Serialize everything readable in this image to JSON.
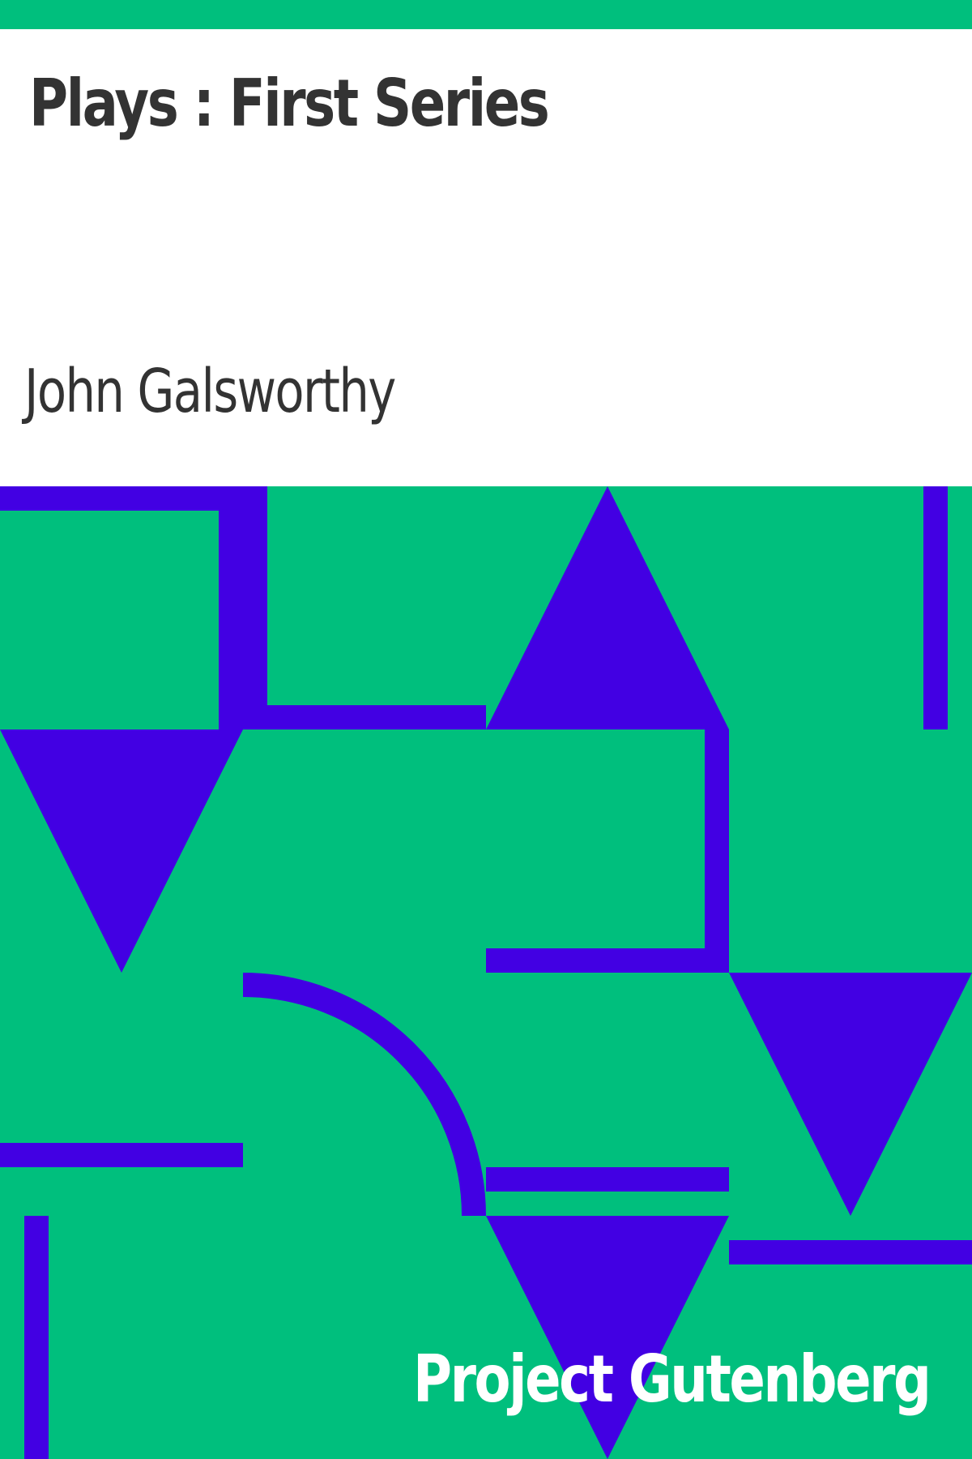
{
  "cover": {
    "title": "Plays : First Series",
    "author": "John Galsworthy",
    "publisher": "Project Gutenberg"
  },
  "colors": {
    "background": "#ffffff",
    "accent_green": "#00bf7d",
    "pattern_blue": "#4200e3",
    "text_dark": "#333333",
    "text_light": "#ffffff"
  }
}
